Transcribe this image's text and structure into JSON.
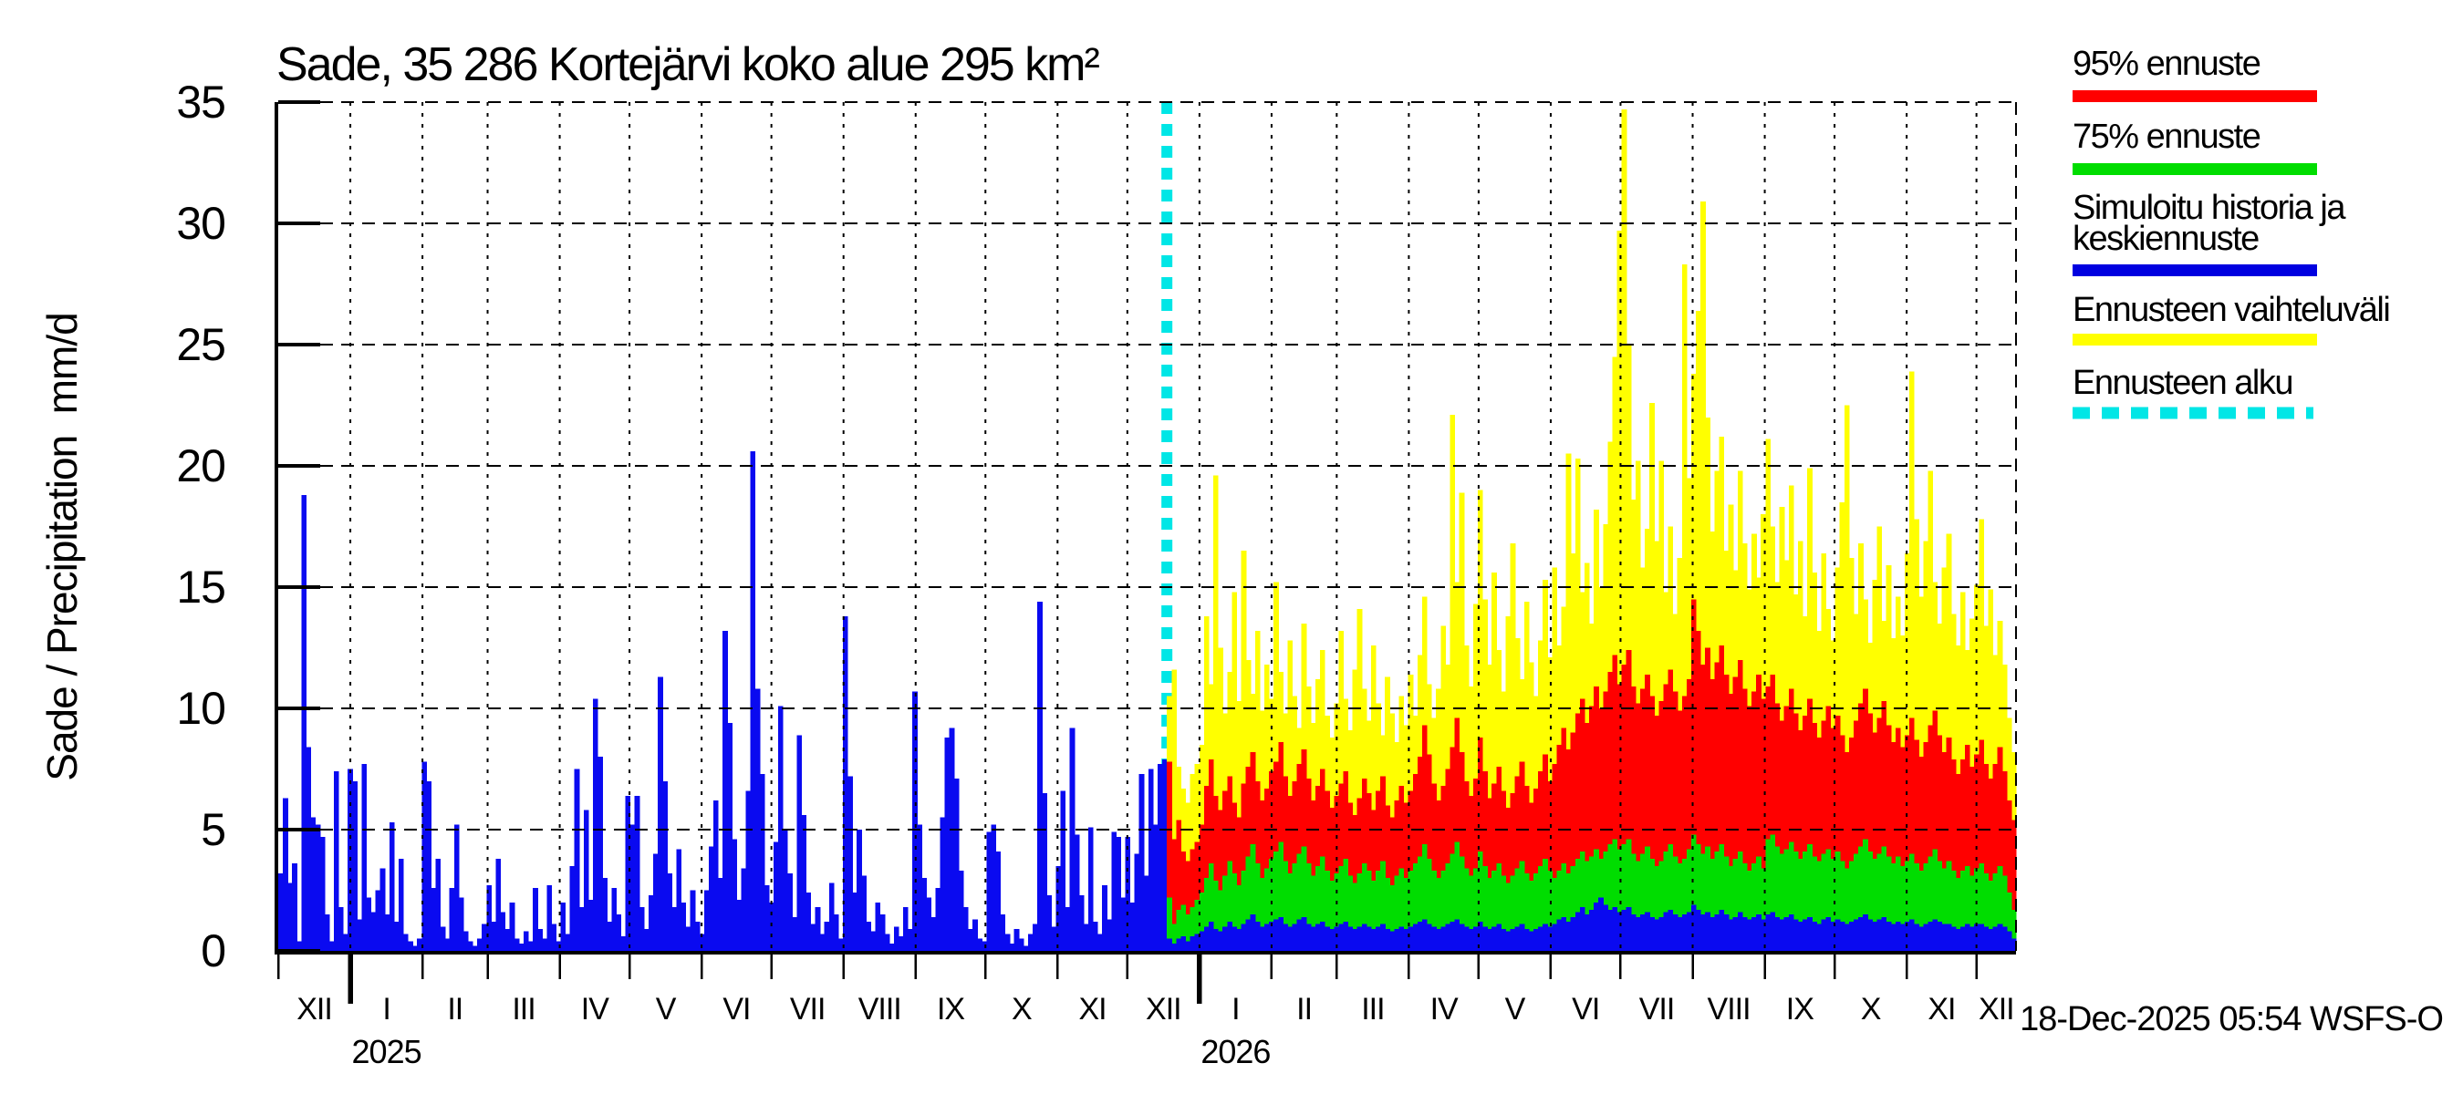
{
  "title": "Sade, 35 286 Kortejärvi koko alue 295 km²",
  "timestamp": "18-Dec-2025 05:54 WSFS-O",
  "y_axis": {
    "label": "Sade / Precipitation  mm/d",
    "ticks": [
      0,
      5,
      10,
      15,
      20,
      25,
      30,
      35
    ],
    "max": 35
  },
  "x_axis": {
    "month_labels": [
      "XII",
      "I",
      "II",
      "III",
      "IV",
      "V",
      "VI",
      "VII",
      "VIII",
      "IX",
      "X",
      "XI",
      "XII",
      "I",
      "II",
      "III",
      "IV",
      "V",
      "VI",
      "VII",
      "VIII",
      "IX",
      "X",
      "XI",
      "XII"
    ],
    "year_labels": [
      {
        "label": "2025",
        "day": 46.5
      },
      {
        "label": "2026",
        "day": 411.5
      }
    ],
    "year_tick_days": [
      31,
      396
    ]
  },
  "legend": {
    "items": [
      {
        "label": "95% ennuste",
        "lines": [
          "95% ennuste"
        ],
        "color": "#ff0000",
        "dashed": false
      },
      {
        "label": "75% ennuste",
        "lines": [
          "75% ennuste"
        ],
        "color": "#00dd00",
        "dashed": false
      },
      {
        "label": "Simuloitu historia ja keskiennuste",
        "lines": [
          "Simuloitu historia ja",
          "keskiennuste"
        ],
        "color": "#0000e0",
        "dashed": false
      },
      {
        "label": "Ennusteen vaihteluväli",
        "lines": [
          "Ennusteen vaihteluväli"
        ],
        "color": "#ffff00",
        "dashed": false
      },
      {
        "label": "Ennusteen alku",
        "lines": [
          "Ennusteen alku"
        ],
        "color": "#00e6e6",
        "dashed": true
      }
    ]
  },
  "colors": {
    "history": "#0a0af0",
    "median": "#0a0af0",
    "p75": "#00dd00",
    "p95": "#ff0000",
    "range": "#ffff00",
    "forecast_start": "#00e6e6",
    "grid": "#000000"
  },
  "chart_data": {
    "type": "bar",
    "title": "Sade, 35 286 Kortejärvi koko alue 295 km²",
    "ylabel": "Sade / Precipitation mm/d",
    "ylim": [
      0,
      35
    ],
    "grid": true,
    "x_start": "01-Dec-2024",
    "x_end": "18-Dec-2026",
    "forecast_start": "18-Dec-2025",
    "forecast_start_day": 382,
    "total_days": 747,
    "bin_days": 2,
    "month_boundaries_days": [
      0,
      31,
      62,
      90,
      121,
      151,
      182,
      212,
      243,
      274,
      304,
      335,
      365,
      396,
      427,
      455,
      486,
      516,
      547,
      577,
      608,
      639,
      669,
      700,
      730,
      747
    ],
    "history": {
      "name": "Simuloitu historia",
      "values": [
        3.2,
        6.3,
        2.8,
        3.6,
        0.4,
        18.8,
        8.4,
        5.5,
        5.2,
        4.7,
        1.5,
        0.4,
        7.4,
        1.8,
        0.7,
        7.5,
        7.0,
        1.3,
        7.7,
        2.2,
        1.6,
        2.5,
        3.4,
        1.5,
        5.3,
        1.2,
        3.8,
        0.7,
        0.4,
        0.2,
        0.5,
        7.8,
        7.0,
        2.6,
        3.8,
        1.0,
        0.5,
        2.6,
        5.2,
        2.2,
        0.8,
        0.4,
        0.2,
        0.5,
        1.1,
        2.7,
        1.2,
        3.8,
        1.6,
        0.9,
        2.0,
        0.5,
        0.3,
        0.8,
        0.4,
        2.6,
        0.9,
        0.5,
        2.7,
        1.1,
        0.4,
        2.0,
        0.7,
        3.5,
        7.5,
        1.8,
        5.8,
        2.1,
        10.4,
        8.0,
        3.0,
        1.2,
        2.6,
        1.5,
        0.6,
        6.4,
        5.2,
        6.4,
        1.8,
        0.9,
        2.3,
        4.0,
        11.3,
        7.0,
        3.2,
        1.8,
        4.2,
        2.0,
        1.0,
        2.5,
        1.2,
        0.7,
        2.5,
        4.3,
        6.2,
        3.0,
        13.2,
        9.4,
        4.6,
        2.1,
        3.4,
        6.6,
        20.6,
        10.8,
        7.3,
        2.7,
        2.0,
        4.5,
        10.1,
        5.0,
        3.2,
        1.4,
        8.9,
        5.6,
        2.4,
        1.1,
        1.8,
        0.7,
        1.2,
        2.8,
        1.5,
        0.5,
        13.8,
        7.2,
        2.4,
        5.0,
        3.1,
        1.2,
        0.8,
        2.0,
        1.5,
        0.7,
        0.3,
        1.0,
        0.6,
        1.8,
        0.9,
        10.7,
        5.2,
        3.0,
        2.2,
        1.4,
        2.6,
        5.5,
        8.8,
        9.2,
        7.1,
        3.3,
        1.8,
        0.9,
        1.3,
        0.5,
        0.4,
        4.9,
        5.2,
        4.1,
        1.5,
        0.7,
        0.3,
        0.9,
        0.5,
        0.2,
        0.7,
        1.1,
        14.4,
        6.5,
        2.3,
        1.0,
        3.5,
        6.6,
        1.8,
        9.2,
        4.8,
        2.3,
        1.1,
        5.1,
        1.2,
        0.7,
        2.7,
        1.3,
        4.9,
        4.7,
        2.2,
        4.7,
        2.0,
        4.0,
        7.3,
        3.1,
        7.5,
        5.2,
        7.7,
        7.9
      ]
    },
    "forecast": {
      "series": [
        {
          "name": "Ennusteen vaihteluväli (max)",
          "values": [
            10.5,
            11.6,
            7.6,
            6.7,
            6.1,
            7.3,
            7.7,
            8.5,
            13.8,
            11.0,
            19.6,
            12.5,
            9.8,
            11.5,
            14.8,
            10.3,
            16.5,
            12.0,
            10.6,
            13.2,
            9.9,
            11.8,
            10.4,
            15.2,
            11.5,
            9.8,
            12.8,
            10.5,
            9.2,
            13.5,
            10.9,
            9.4,
            11.2,
            12.4,
            9.7,
            8.8,
            10.2,
            13.2,
            10.4,
            9.1,
            11.6,
            14.1,
            10.8,
            9.5,
            12.6,
            10.2,
            8.9,
            11.3,
            9.8,
            8.6,
            10.5,
            9.3,
            11.4,
            9.7,
            12.2,
            14.6,
            11.0,
            9.6,
            10.8,
            13.4,
            11.8,
            22.1,
            15.2,
            18.9,
            12.6,
            10.9,
            14.3,
            19.0,
            14.5,
            11.8,
            15.6,
            12.4,
            10.7,
            13.8,
            16.8,
            12.9,
            11.2,
            14.4,
            11.9,
            10.5,
            12.8,
            15.3,
            12.1,
            15.8,
            12.6,
            14.2,
            20.5,
            16.4,
            20.3,
            14.8,
            16.0,
            13.5,
            18.2,
            15.0,
            17.6,
            21.0,
            24.5,
            29.7,
            34.7,
            25.0,
            18.6,
            20.2,
            15.8,
            17.4,
            22.6,
            16.9,
            20.2,
            14.8,
            17.5,
            13.9,
            16.2,
            28.3,
            19.5,
            23.8,
            26.4,
            30.9,
            22.0,
            17.3,
            19.8,
            21.2,
            16.5,
            18.4,
            15.7,
            19.8,
            16.8,
            14.9,
            17.2,
            15.4,
            18.0,
            21.1,
            17.5,
            15.2,
            18.3,
            16.1,
            19.2,
            14.7,
            16.9,
            13.8,
            19.9,
            15.6,
            13.2,
            16.4,
            14.1,
            12.8,
            15.8,
            18.5,
            22.5,
            16.2,
            13.9,
            16.8,
            14.5,
            12.7,
            15.3,
            17.5,
            13.6,
            15.9,
            12.9,
            14.6,
            13.0,
            16.4,
            23.9,
            17.8,
            14.6,
            16.9,
            19.8,
            15.2,
            13.5,
            15.8,
            17.2,
            13.9,
            12.6,
            14.8,
            12.4,
            13.7,
            15.1,
            17.8,
            13.4,
            14.9,
            12.2,
            13.6,
            11.8,
            9.6,
            8.2
          ]
        },
        {
          "name": "95% ennuste",
          "values": [
            7.8,
            4.6,
            5.4,
            4.1,
            3.7,
            4.2,
            4.5,
            5.2,
            6.8,
            7.9,
            6.4,
            5.8,
            6.6,
            7.2,
            6.1,
            5.5,
            6.9,
            7.6,
            8.2,
            7.0,
            6.2,
            6.7,
            7.4,
            7.8,
            8.6,
            7.2,
            6.4,
            7.0,
            7.7,
            8.3,
            7.1,
            6.2,
            6.8,
            7.5,
            6.6,
            5.9,
            6.4,
            6.9,
            7.4,
            6.1,
            5.6,
            6.3,
            7.1,
            6.5,
            5.8,
            6.6,
            7.2,
            6.0,
            5.5,
            6.2,
            6.8,
            6.1,
            6.6,
            7.3,
            8.0,
            9.3,
            8.1,
            6.9,
            6.2,
            6.8,
            7.5,
            8.4,
            9.6,
            8.2,
            7.0,
            6.4,
            7.1,
            8.8,
            7.4,
            6.3,
            6.9,
            7.6,
            6.6,
            5.9,
            6.5,
            7.2,
            7.8,
            6.8,
            6.1,
            6.7,
            7.4,
            8.1,
            7.0,
            7.7,
            8.5,
            9.2,
            8.3,
            9.0,
            9.8,
            10.4,
            9.4,
            10.1,
            10.9,
            10.0,
            10.7,
            11.5,
            12.2,
            11.0,
            11.8,
            12.4,
            10.9,
            10.2,
            10.8,
            11.4,
            10.5,
            9.7,
            10.3,
            11.0,
            11.6,
            10.7,
            9.9,
            10.5,
            11.2,
            14.5,
            13.2,
            11.8,
            12.5,
            11.2,
            11.9,
            12.6,
            11.4,
            10.6,
            11.3,
            12.0,
            10.8,
            10.1,
            10.7,
            11.4,
            10.4,
            10.9,
            11.4,
            10.2,
            9.5,
            10.1,
            10.8,
            9.8,
            9.1,
            9.7,
            10.4,
            9.4,
            8.8,
            9.5,
            10.1,
            9.2,
            9.7,
            8.9,
            8.2,
            8.8,
            9.5,
            10.2,
            10.8,
            9.8,
            9.0,
            9.6,
            10.3,
            9.3,
            8.6,
            9.2,
            8.4,
            8.9,
            9.6,
            8.7,
            8.0,
            8.6,
            9.3,
            9.9,
            8.9,
            8.2,
            8.8,
            7.9,
            7.3,
            7.9,
            8.5,
            7.6,
            8.1,
            8.7,
            7.7,
            7.1,
            7.7,
            8.4,
            7.4,
            6.2,
            5.4
          ]
        },
        {
          "name": "75% ennuste",
          "values": [
            2.2,
            1.1,
            1.7,
            1.9,
            1.5,
            1.8,
            2.1,
            2.4,
            3.0,
            3.6,
            2.9,
            2.5,
            3.1,
            3.7,
            3.2,
            2.7,
            3.3,
            3.9,
            4.4,
            3.6,
            3.0,
            3.4,
            3.8,
            4.1,
            4.5,
            3.7,
            3.2,
            3.6,
            4.0,
            4.3,
            3.6,
            3.1,
            3.5,
            3.9,
            3.3,
            2.9,
            3.2,
            3.5,
            3.8,
            3.1,
            2.8,
            3.2,
            3.6,
            3.3,
            2.9,
            3.3,
            3.7,
            3.0,
            2.7,
            3.1,
            3.4,
            3.0,
            3.3,
            3.6,
            3.9,
            4.4,
            3.8,
            3.3,
            3.0,
            3.3,
            3.6,
            4.0,
            4.5,
            3.9,
            3.4,
            3.1,
            3.4,
            4.1,
            3.5,
            3.0,
            3.3,
            3.6,
            3.1,
            2.8,
            3.1,
            3.4,
            3.7,
            3.2,
            2.9,
            3.2,
            3.5,
            3.8,
            3.3,
            3.0,
            3.3,
            3.6,
            3.2,
            3.5,
            3.8,
            4.1,
            3.7,
            3.9,
            4.2,
            3.8,
            4.1,
            4.4,
            4.6,
            4.2,
            4.4,
            4.6,
            4.0,
            3.7,
            4.0,
            4.3,
            3.8,
            3.5,
            3.7,
            4.1,
            4.4,
            3.9,
            3.6,
            3.8,
            4.2,
            4.8,
            4.4,
            4.0,
            4.3,
            3.8,
            4.1,
            4.4,
            3.9,
            3.5,
            3.8,
            4.1,
            3.6,
            3.3,
            3.6,
            3.9,
            3.4,
            4.6,
            4.8,
            4.3,
            4.0,
            4.2,
            4.5,
            4.1,
            3.8,
            4.1,
            4.4,
            3.9,
            3.7,
            4.0,
            4.2,
            3.8,
            4.1,
            3.7,
            3.4,
            3.7,
            4.0,
            4.3,
            4.6,
            4.1,
            3.8,
            4.0,
            4.3,
            3.9,
            3.6,
            3.9,
            3.5,
            3.7,
            4.0,
            3.6,
            3.3,
            3.6,
            3.9,
            4.2,
            3.7,
            3.4,
            3.7,
            3.3,
            3.0,
            3.3,
            3.5,
            3.1,
            3.4,
            3.6,
            3.2,
            2.9,
            3.2,
            3.5,
            3.1,
            2.4,
            1.7
          ]
        },
        {
          "name": "Keskiennuste",
          "values": [
            0.5,
            0.3,
            0.5,
            0.6,
            0.4,
            0.6,
            0.7,
            0.8,
            1.0,
            1.2,
            0.9,
            0.8,
            1.0,
            1.2,
            1.0,
            0.9,
            1.1,
            1.3,
            1.5,
            1.2,
            1.0,
            1.1,
            1.2,
            1.3,
            1.4,
            1.1,
            1.0,
            1.1,
            1.3,
            1.4,
            1.1,
            1.0,
            1.1,
            1.2,
            1.0,
            0.9,
            1.0,
            1.1,
            1.2,
            1.0,
            0.9,
            1.0,
            1.1,
            1.0,
            0.9,
            1.0,
            1.1,
            0.9,
            0.8,
            0.9,
            1.0,
            0.9,
            1.0,
            1.1,
            1.2,
            1.3,
            1.1,
            1.0,
            0.9,
            1.0,
            1.1,
            1.2,
            1.3,
            1.1,
            1.0,
            0.9,
            1.0,
            1.2,
            1.0,
            0.9,
            1.0,
            1.1,
            0.9,
            0.8,
            0.9,
            1.0,
            1.1,
            0.9,
            0.8,
            0.9,
            1.0,
            1.1,
            1.0,
            1.1,
            1.3,
            1.4,
            1.2,
            1.4,
            1.6,
            1.8,
            1.5,
            1.7,
            2.0,
            2.2,
            1.9,
            1.7,
            1.8,
            1.6,
            1.7,
            1.8,
            1.5,
            1.4,
            1.5,
            1.6,
            1.4,
            1.3,
            1.4,
            1.6,
            1.7,
            1.5,
            1.4,
            1.5,
            1.6,
            1.9,
            1.7,
            1.5,
            1.6,
            1.4,
            1.5,
            1.7,
            1.5,
            1.3,
            1.4,
            1.6,
            1.4,
            1.3,
            1.4,
            1.5,
            1.3,
            1.5,
            1.6,
            1.4,
            1.3,
            1.4,
            1.5,
            1.3,
            1.2,
            1.3,
            1.4,
            1.2,
            1.1,
            1.3,
            1.4,
            1.2,
            1.3,
            1.2,
            1.1,
            1.2,
            1.3,
            1.4,
            1.5,
            1.3,
            1.2,
            1.3,
            1.4,
            1.2,
            1.1,
            1.2,
            1.1,
            1.2,
            1.3,
            1.1,
            1.0,
            1.1,
            1.2,
            1.3,
            1.2,
            1.1,
            1.1,
            1.0,
            0.9,
            1.0,
            1.1,
            1.0,
            1.1,
            1.1,
            1.0,
            0.9,
            1.0,
            1.1,
            1.0,
            0.8,
            0.5
          ]
        }
      ]
    }
  }
}
